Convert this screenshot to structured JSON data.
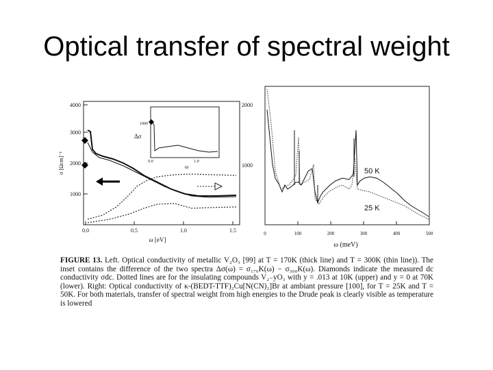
{
  "slide": {
    "title": "Optical transfer of spectral weight"
  },
  "figure": {
    "left_panel": {
      "y_axis_label": "σ [Ωcm]⁻¹",
      "x_axis_label": "ω [eV]",
      "y_ticks": [
        "1000",
        "2000",
        "3000",
        "4000"
      ],
      "x_ticks": [
        "0.0",
        "0.5",
        "1.0",
        "1.5"
      ],
      "right_ticks": [
        "2000",
        "1000"
      ],
      "inset": {
        "y_label": "Δσ",
        "x_label": "ω",
        "y_tick": "1000",
        "x_ticks": [
          "0.0",
          "1.0"
        ]
      }
    },
    "right_panel": {
      "x_axis_label": "ω (meV)",
      "x_ticks": [
        "0",
        "100",
        "200",
        "300",
        "400",
        "500"
      ],
      "labels": [
        "50 K",
        "25 K"
      ]
    }
  },
  "caption": {
    "lead": "FIGURE 13.",
    "text": "Left. Optical conductivity of metallic V₂O₃ [99] at T = 170K (thick line) and T = 300K (thin line)). The inset contains the difference of the two spectra Δσ(ω) = σ₁₇₀K(ω) − σ₃₀₀K(ω). Diamonds indicate the measured dc conductivity σdc. Dotted lines are for the insulating compounds V₂₋yO₃ with y = .013 at 10K (upper) and y = 0 at 70K (lower). Right: Optical conductivity of κ-(BEDT-TTF)₂Cu[N(CN)₂]Br at ambiant pressure [100], for T = 25K and T = 50K. For both materials, transfer of spectral weight from high energies to the Drude peak is clearly visible as temperature is lowered"
  }
}
